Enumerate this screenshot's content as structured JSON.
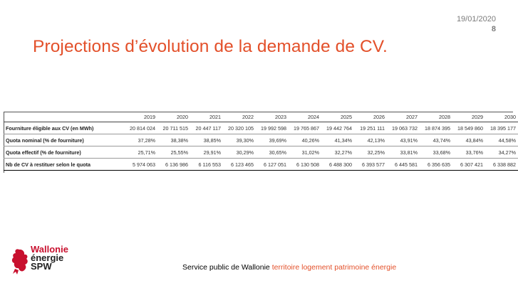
{
  "header": {
    "date": "19/01/2020",
    "page_number": "8"
  },
  "title": "Projections d’évolution de la demande de CV.",
  "table": {
    "years": [
      "2019",
      "2020",
      "2021",
      "2022",
      "2023",
      "2024",
      "2025",
      "2026",
      "2027",
      "2028",
      "2029",
      "2030"
    ],
    "rows": [
      {
        "label": "Fourniture éligible aux CV (en MWh)",
        "values": [
          "20 814 024",
          "20 711 515",
          "20 447 117",
          "20 320 105",
          "19 992 598",
          "19 765 867",
          "19 442 764",
          "19 251 111",
          "19 063 732",
          "18 874 395",
          "18 549 860",
          "18 395 177"
        ]
      },
      {
        "label": "Quota nominal (% de fourniture)",
        "values": [
          "37,28%",
          "38,38%",
          "38,85%",
          "39,30%",
          "39,69%",
          "40,26%",
          "41,34%",
          "42,13%",
          "43,91%",
          "43,74%",
          "43,84%",
          "44,58%"
        ]
      },
      {
        "label": "Quota effectif (% de fourniture)",
        "values": [
          "25,71%",
          "25,55%",
          "29,91%",
          "30,29%",
          "30,65%",
          "31,02%",
          "32,27%",
          "32,25%",
          "33,81%",
          "33,68%",
          "33,76%",
          "34,27%"
        ]
      },
      {
        "label": "Nb de CV à restituer selon le quota",
        "values": [
          "5 974 063",
          "6 136 986",
          "6 116 553",
          "6 123 465",
          "6 127 051",
          "6 130 508",
          "6 488 300",
          "6 393 577",
          "6 445 581",
          "6 356 635",
          "6 307 421",
          "6 338 882"
        ]
      }
    ]
  },
  "logo": {
    "line1": "Wallonie",
    "line2": "énergie",
    "line3": "SPW",
    "accent": "#c8102e"
  },
  "footer": {
    "plain": "Service public de Wallonie",
    "accent": "territoire logement patrimoine énergie"
  },
  "colors": {
    "title": "#e3502a",
    "footer_accent": "#e3502a"
  }
}
